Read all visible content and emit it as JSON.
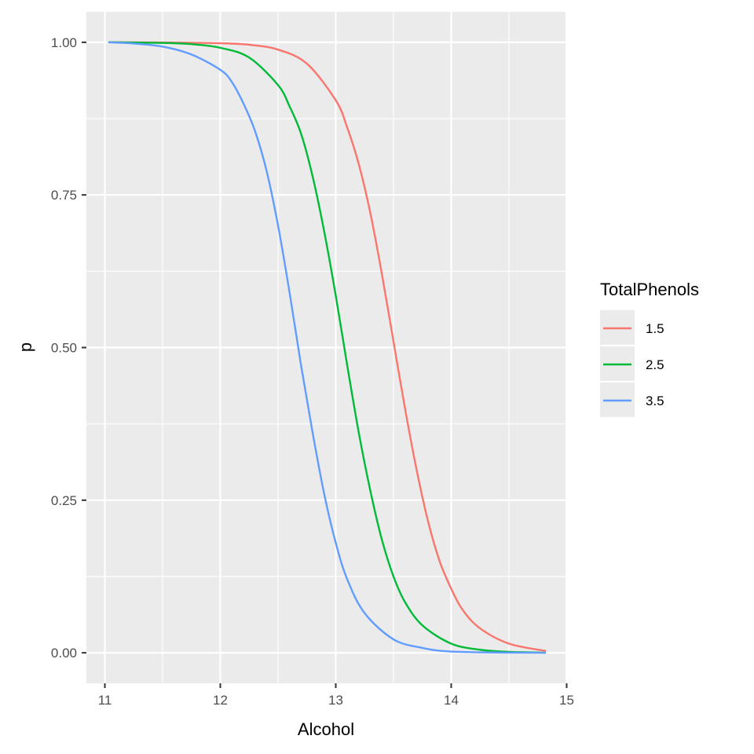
{
  "chart_data": {
    "type": "line",
    "title": "",
    "xlabel": "Alcohol",
    "ylabel": "p",
    "xlim": [
      10.84,
      14.99
    ],
    "ylim": [
      -0.05,
      1.05
    ],
    "x_ticks": [
      11,
      12,
      13,
      14,
      15
    ],
    "y_ticks": [
      0,
      0.25,
      0.5,
      0.75,
      1
    ],
    "x_tick_labels": [
      "11",
      "12",
      "13",
      "14",
      "15"
    ],
    "y_tick_labels": [
      "0.00",
      "0.25",
      "0.50",
      "0.75",
      "1.00"
    ],
    "grid": true,
    "legend": {
      "title": "TotalPhenols",
      "position": "right"
    },
    "series": [
      {
        "name": "1.5",
        "color": "#F8766D",
        "x": [
          11.03,
          11.5,
          12.0,
          12.25,
          12.5,
          12.75,
          13.0,
          13.1,
          13.2,
          13.3,
          13.4,
          13.5,
          13.6,
          13.7,
          13.8,
          13.9,
          14.0,
          14.1,
          14.25,
          14.5,
          14.82
        ],
        "y": [
          1.0,
          0.9998,
          0.9985,
          0.996,
          0.988,
          0.965,
          0.905,
          0.86,
          0.8,
          0.72,
          0.62,
          0.51,
          0.4,
          0.3,
          0.215,
          0.15,
          0.105,
          0.07,
          0.04,
          0.015,
          0.003
        ]
      },
      {
        "name": "2.5",
        "color": "#00BA38",
        "x": [
          11.03,
          11.5,
          11.75,
          12.0,
          12.25,
          12.5,
          12.6,
          12.7,
          12.8,
          12.9,
          13.0,
          13.1,
          13.2,
          13.3,
          13.4,
          13.5,
          13.6,
          13.75,
          14.0,
          14.25,
          14.5,
          14.82
        ],
        "y": [
          1.0,
          0.999,
          0.997,
          0.991,
          0.975,
          0.93,
          0.895,
          0.85,
          0.78,
          0.69,
          0.585,
          0.47,
          0.36,
          0.265,
          0.185,
          0.125,
          0.083,
          0.045,
          0.015,
          0.005,
          0.0015,
          0.0003
        ]
      },
      {
        "name": "3.5",
        "color": "#619CFF",
        "x": [
          11.03,
          11.25,
          11.5,
          11.75,
          12.0,
          12.1,
          12.2,
          12.3,
          12.4,
          12.5,
          12.6,
          12.7,
          12.8,
          12.9,
          13.0,
          13.1,
          13.25,
          13.5,
          13.75,
          14.0,
          14.5,
          14.82
        ],
        "y": [
          1.0,
          0.998,
          0.993,
          0.98,
          0.955,
          0.935,
          0.9,
          0.855,
          0.79,
          0.7,
          0.59,
          0.47,
          0.36,
          0.26,
          0.18,
          0.12,
          0.065,
          0.022,
          0.008,
          0.002,
          0.0003,
          5e-05
        ]
      }
    ]
  }
}
